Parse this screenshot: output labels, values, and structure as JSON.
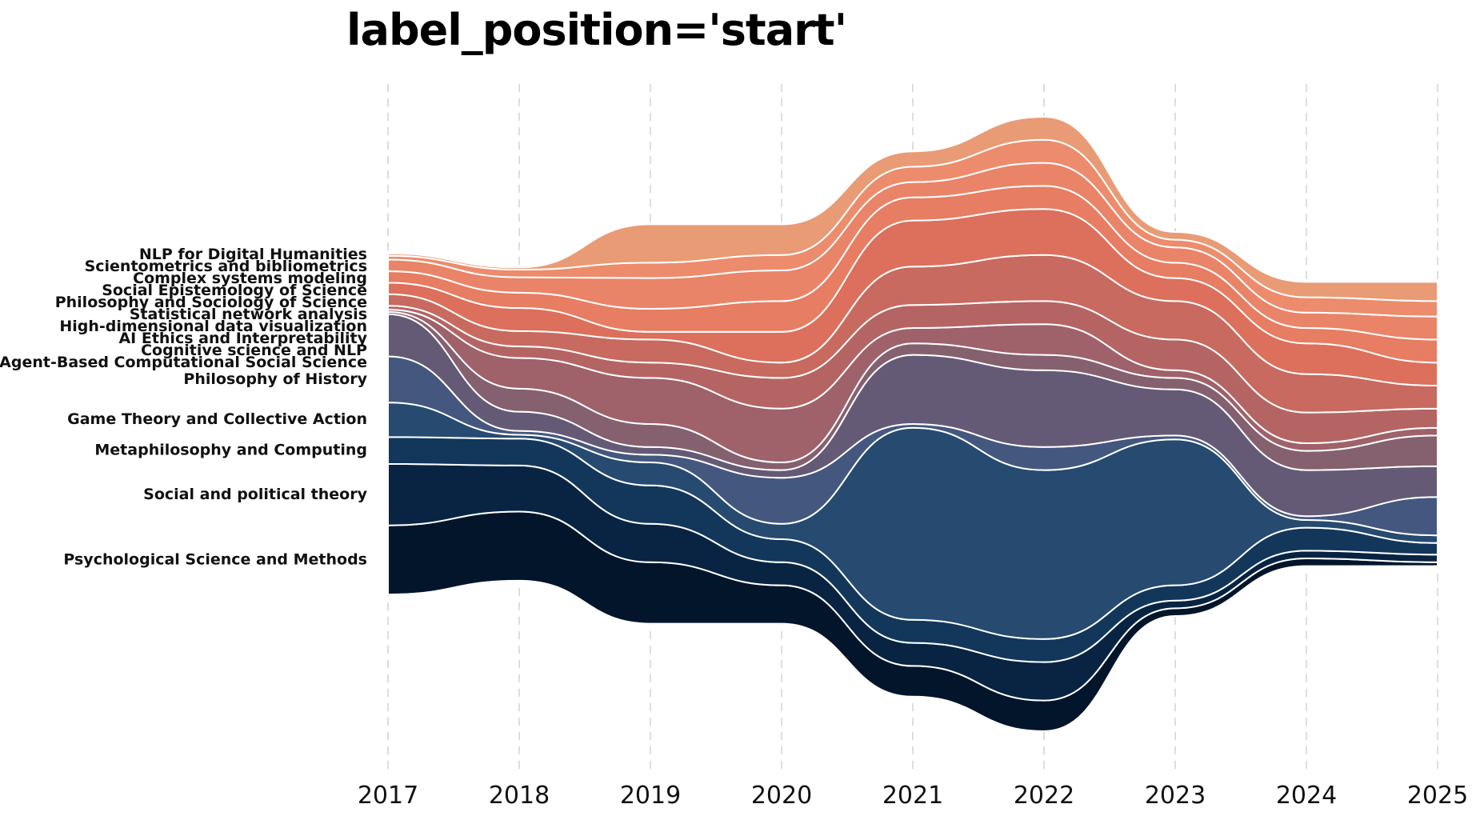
{
  "chart_data": {
    "type": "area",
    "title": "label_position='start'",
    "xlabel": "",
    "ylabel": "",
    "x": [
      "2017",
      "2018",
      "2019",
      "2020",
      "2021",
      "2022",
      "2023",
      "2024",
      "2025"
    ],
    "grid": "vertical dashed",
    "legend": "labels at start (left)",
    "series": [
      {
        "name": "Psychological Science and Methods",
        "color": "#03152a",
        "values": [
          9,
          9,
          8,
          5,
          4,
          4,
          1,
          1,
          0.5
        ]
      },
      {
        "name": "Social and political theory",
        "color": "#082442",
        "values": [
          8,
          6,
          5,
          3,
          3,
          5,
          1,
          1,
          1
        ]
      },
      {
        "name": "Metaphilosophy and Computing",
        "color": "#12375a",
        "values": [
          3.5,
          3.5,
          5,
          3,
          3,
          3,
          2,
          3,
          1.5
        ]
      },
      {
        "name": "Game Theory and Collective Action",
        "color": "#264a70",
        "values": [
          4.5,
          0.5,
          3,
          2,
          25,
          22,
          19,
          1,
          1
        ]
      },
      {
        "name": "Philosophy of History",
        "color": "#44577e",
        "values": [
          6,
          0.5,
          1,
          6,
          0.5,
          3,
          0.5,
          0.5,
          5
        ]
      },
      {
        "name": "Agent-Based Computational Social Science",
        "color": "#655a76",
        "values": [
          5.5,
          2.5,
          1,
          1,
          9,
          10,
          6,
          6,
          4
        ]
      },
      {
        "name": "Cognitive science and NLP",
        "color": "#85606e",
        "values": [
          0.3,
          3,
          3,
          1,
          1.5,
          2,
          1.5,
          2.5,
          4
        ]
      },
      {
        "name": "AI Ethics and Interpretability",
        "color": "#9f616a",
        "values": [
          0.3,
          4,
          6,
          7,
          2,
          4,
          1,
          1,
          1
        ]
      },
      {
        "name": "High-dimensional data visualization",
        "color": "#b56464",
        "values": [
          0.5,
          1.5,
          2,
          4,
          3,
          3,
          4,
          4,
          2.5
        ]
      },
      {
        "name": "Statistical network analysis",
        "color": "#c86a5f",
        "values": [
          1.5,
          2,
          3,
          2,
          5,
          6,
          5,
          5,
          3
        ]
      },
      {
        "name": "Philosophy and Sociology of Science",
        "color": "#dc705c",
        "values": [
          1.5,
          3,
          1,
          4,
          6,
          6,
          3,
          4,
          3
        ]
      },
      {
        "name": "Social Epistemology of Science",
        "color": "#e77d62",
        "values": [
          1.5,
          2,
          3,
          4,
          3,
          3,
          2,
          2,
          3
        ]
      },
      {
        "name": "Complex systems modeling",
        "color": "#ea8468",
        "values": [
          1.5,
          2,
          4,
          4,
          2,
          3,
          2,
          2,
          3
        ]
      },
      {
        "name": "Scientometrics and bibliometrics",
        "color": "#ec8c6c",
        "values": [
          0.5,
          1,
          2,
          2,
          2,
          3,
          1,
          2,
          2
        ]
      },
      {
        "name": "NLP for Digital Humanities",
        "color": "#e99b75",
        "values": [
          0.3,
          0.3,
          5,
          4,
          2,
          3,
          1,
          2,
          2.5
        ]
      }
    ]
  }
}
